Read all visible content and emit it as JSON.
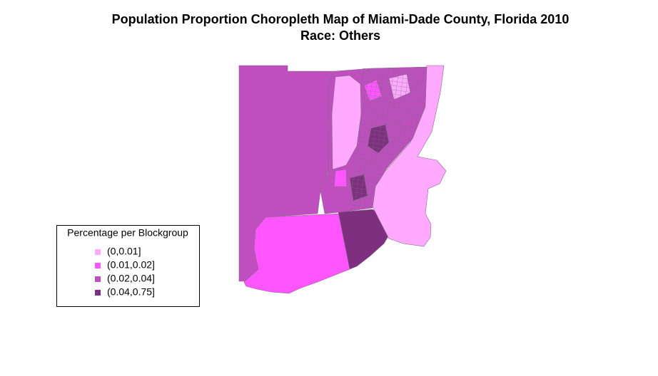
{
  "title": "Population Proportion Choropleth Map of Miami-Dade County, Florida 2010",
  "subtitle": "Race: Others",
  "legend": {
    "title": "Percentage per Blockgroup",
    "items": [
      {
        "label": "(0,0.01]",
        "color": "#ffaaff"
      },
      {
        "label": "(0.01,0.02]",
        "color": "#ff55ff"
      },
      {
        "label": "(0.02,0.04]",
        "color": "#bf4fbf"
      },
      {
        "label": "(0.04,0.75]",
        "color": "#7f2f7f"
      }
    ]
  }
}
